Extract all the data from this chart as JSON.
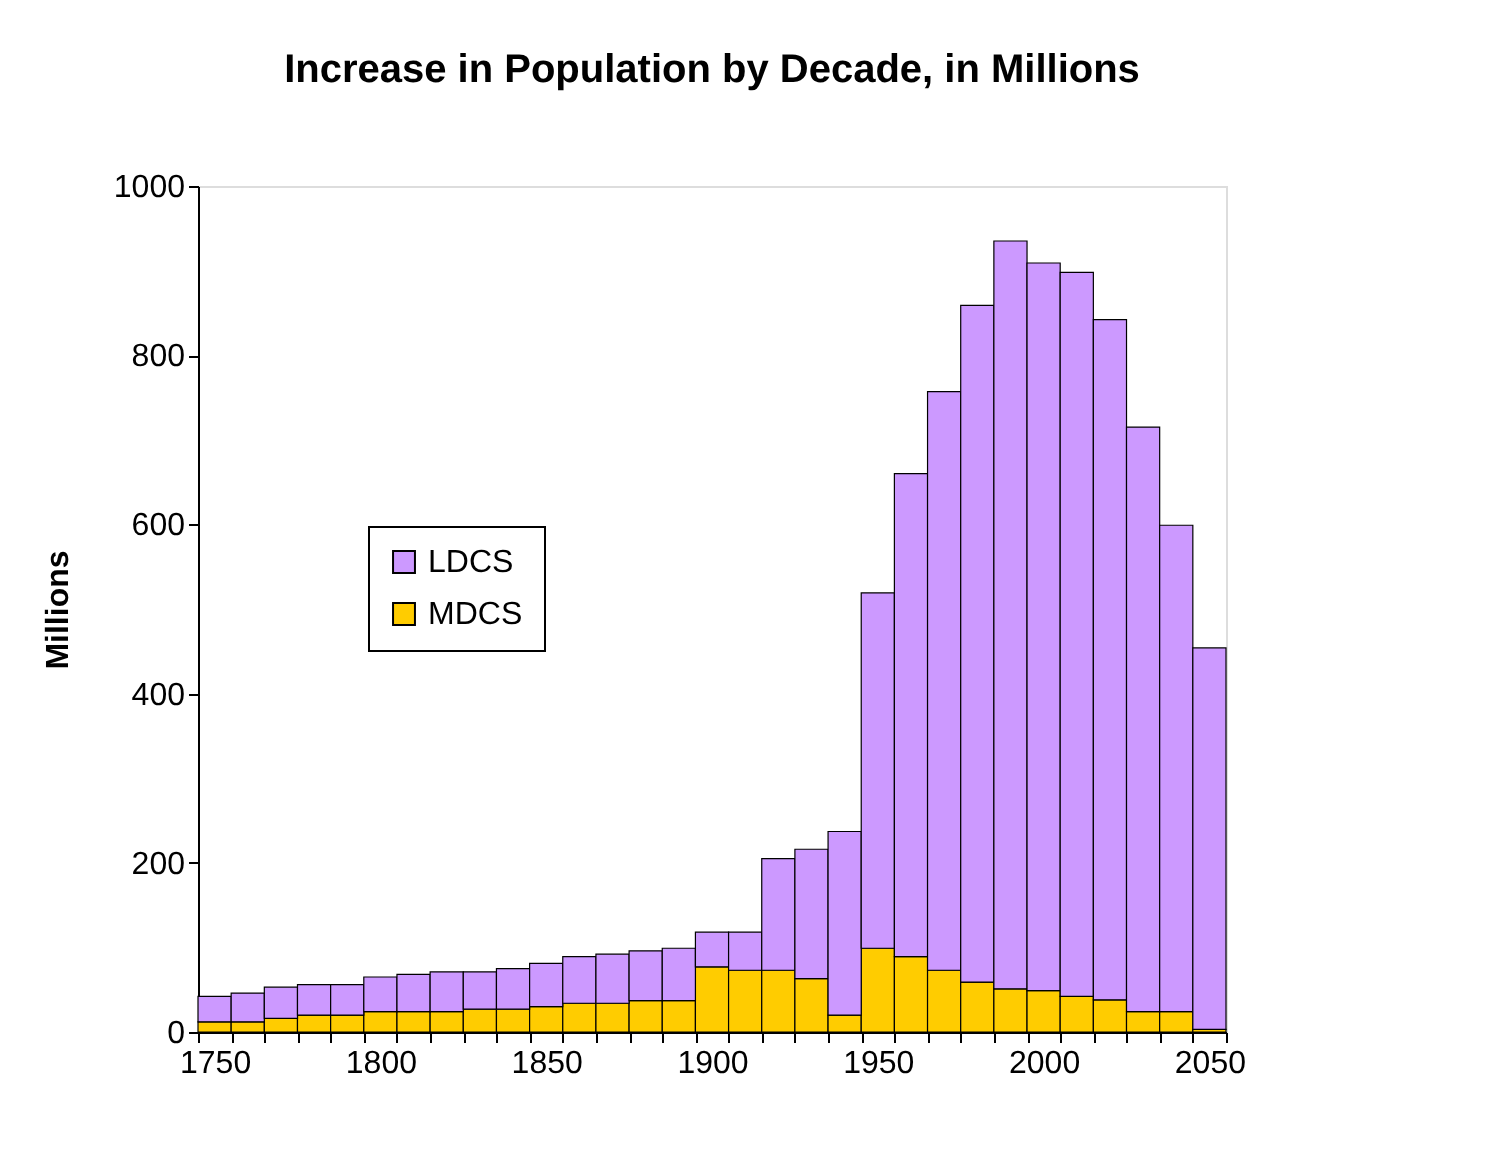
{
  "chart_data": {
    "type": "bar",
    "stacked": true,
    "title": "Increase in Population by Decade, in Millions",
    "ylabel": "Millions",
    "categories": [
      "1750",
      null,
      null,
      null,
      null,
      "1800",
      null,
      null,
      null,
      null,
      "1850",
      null,
      null,
      null,
      null,
      "1900",
      null,
      null,
      null,
      null,
      "1950",
      null,
      null,
      null,
      null,
      "2000",
      null,
      null,
      null,
      null,
      "2050"
    ],
    "series": [
      {
        "name": "MDCS",
        "color": "#ffcc00",
        "values": [
          12,
          12,
          16,
          20,
          20,
          24,
          24,
          24,
          27,
          27,
          30,
          34,
          34,
          37,
          37,
          77,
          73,
          73,
          63,
          20,
          99,
          89,
          73,
          59,
          51,
          49,
          42,
          38,
          24,
          24,
          3
        ]
      },
      {
        "name": "LDCS",
        "color": "#cc99ff",
        "values": [
          30,
          34,
          37,
          36,
          36,
          41,
          44,
          47,
          44,
          48,
          51,
          55,
          58,
          59,
          62,
          41,
          45,
          132,
          153,
          217,
          420,
          571,
          684,
          800,
          884,
          860,
          856,
          804,
          691,
          575,
          451
        ]
      }
    ],
    "ylim": [
      0,
      1000
    ],
    "yticks": [
      0,
      200,
      400,
      600,
      800,
      1000
    ],
    "grid": false,
    "legend": "left"
  }
}
